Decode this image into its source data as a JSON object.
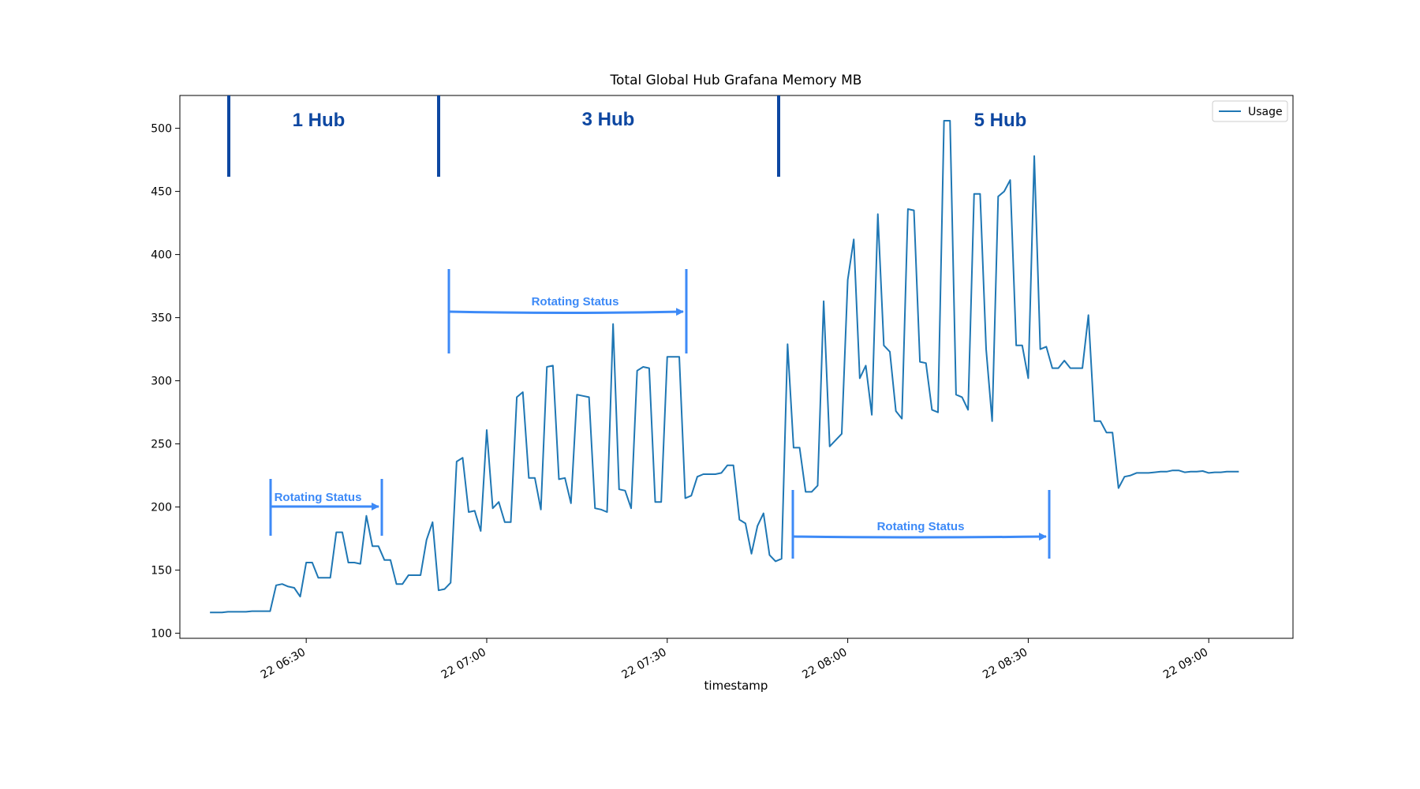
{
  "chart_data": {
    "type": "line",
    "title": "Total Global Hub Grafana Memory MB",
    "x_label": "timestamp",
    "x": [
      "22 06:14",
      "22 06:15",
      "22 06:16",
      "22 06:17",
      "22 06:18",
      "22 06:19",
      "22 06:20",
      "22 06:21",
      "22 06:22",
      "22 06:23",
      "22 06:24",
      "22 06:25",
      "22 06:26",
      "22 06:27",
      "22 06:28",
      "22 06:29",
      "22 06:30",
      "22 06:31",
      "22 06:32",
      "22 06:33",
      "22 06:34",
      "22 06:35",
      "22 06:36",
      "22 06:37",
      "22 06:38",
      "22 06:39",
      "22 06:40",
      "22 06:41",
      "22 06:42",
      "22 06:43",
      "22 06:44",
      "22 06:45",
      "22 06:46",
      "22 06:47",
      "22 06:48",
      "22 06:49",
      "22 06:50",
      "22 06:51",
      "22 06:52",
      "22 06:53",
      "22 06:54",
      "22 06:55",
      "22 06:56",
      "22 06:57",
      "22 06:58",
      "22 06:59",
      "22 07:00",
      "22 07:01",
      "22 07:02",
      "22 07:03",
      "22 07:04",
      "22 07:05",
      "22 07:06",
      "22 07:07",
      "22 07:08",
      "22 07:09",
      "22 07:10",
      "22 07:11",
      "22 07:12",
      "22 07:13",
      "22 07:14",
      "22 07:15",
      "22 07:16",
      "22 07:17",
      "22 07:18",
      "22 07:19",
      "22 07:20",
      "22 07:21",
      "22 07:22",
      "22 07:23",
      "22 07:24",
      "22 07:25",
      "22 07:26",
      "22 07:27",
      "22 07:28",
      "22 07:29",
      "22 07:30",
      "22 07:31",
      "22 07:32",
      "22 07:33",
      "22 07:34",
      "22 07:35",
      "22 07:36",
      "22 07:37",
      "22 07:38",
      "22 07:39",
      "22 07:40",
      "22 07:41",
      "22 07:42",
      "22 07:43",
      "22 07:44",
      "22 07:45",
      "22 07:46",
      "22 07:47",
      "22 07:48",
      "22 07:49",
      "22 07:50",
      "22 07:51",
      "22 07:52",
      "22 07:53",
      "22 07:54",
      "22 07:55",
      "22 07:56",
      "22 07:57",
      "22 07:58",
      "22 07:59",
      "22 08:00",
      "22 08:01",
      "22 08:02",
      "22 08:03",
      "22 08:04",
      "22 08:05",
      "22 08:06",
      "22 08:07",
      "22 08:08",
      "22 08:09",
      "22 08:10",
      "22 08:11",
      "22 08:12",
      "22 08:13",
      "22 08:14",
      "22 08:15",
      "22 08:16",
      "22 08:17",
      "22 08:18",
      "22 08:19",
      "22 08:20",
      "22 08:21",
      "22 08:22",
      "22 08:23",
      "22 08:24",
      "22 08:25",
      "22 08:26",
      "22 08:27",
      "22 08:28",
      "22 08:29",
      "22 08:30",
      "22 08:31",
      "22 08:32",
      "22 08:33",
      "22 08:34",
      "22 08:35",
      "22 08:36",
      "22 08:37",
      "22 08:38",
      "22 08:39",
      "22 08:40",
      "22 08:41",
      "22 08:42",
      "22 08:43",
      "22 08:44",
      "22 08:45",
      "22 08:46",
      "22 08:47",
      "22 08:48",
      "22 08:49",
      "22 08:50",
      "22 08:51",
      "22 08:52",
      "22 08:53",
      "22 08:54",
      "22 08:55",
      "22 08:56",
      "22 08:57",
      "22 08:58",
      "22 08:59",
      "22 09:00",
      "22 09:01",
      "22 09:02",
      "22 09:03",
      "22 09:04",
      "22 09:05"
    ],
    "series": [
      {
        "name": "Usage",
        "color": "#1f77b4",
        "values": [
          116.5,
          116.5,
          116.5,
          117,
          117,
          117,
          117,
          117.5,
          117.5,
          117.5,
          117.5,
          138,
          139,
          137,
          136,
          129,
          156,
          156,
          144,
          144,
          144,
          180,
          180,
          156,
          156,
          155,
          193,
          169,
          169,
          158,
          158,
          139,
          139,
          146,
          146,
          146,
          174,
          188,
          134,
          135,
          140,
          236,
          239,
          196,
          197,
          181,
          261,
          199,
          204,
          188,
          188,
          287,
          291,
          223,
          223,
          198,
          311,
          312,
          222,
          223,
          203,
          289,
          288,
          287,
          199,
          198,
          196,
          345,
          214,
          213,
          199,
          308,
          311,
          310,
          204,
          204,
          319,
          319,
          319,
          207,
          209,
          224,
          226,
          226,
          226,
          227,
          233,
          233,
          190,
          187,
          163,
          185,
          195,
          162,
          157,
          159,
          329,
          247,
          247,
          212,
          212,
          217,
          363,
          248,
          253,
          258,
          380,
          412,
          302,
          312,
          273,
          432,
          328,
          323,
          276,
          270,
          436,
          435,
          315,
          314,
          277,
          275,
          506,
          506,
          289,
          287,
          277,
          448,
          448,
          325,
          268,
          446,
          450,
          459,
          328,
          328,
          302,
          478,
          325,
          327,
          310,
          310,
          316,
          310,
          310,
          310,
          352,
          268,
          268,
          259,
          259,
          215,
          224,
          225,
          227,
          227,
          227,
          227.5,
          228,
          228,
          229,
          229,
          227.5,
          228,
          228,
          228.5,
          227,
          227.5,
          227.5,
          228,
          228,
          228
        ]
      }
    ],
    "xlim": [
      "22 06:09",
      "22 09:14"
    ],
    "xticks": [
      "22 06:30",
      "22 07:00",
      "22 07:30",
      "22 08:00",
      "22 08:30",
      "22 09:00"
    ],
    "ylim": [
      96,
      526
    ],
    "yticks": [
      100,
      150,
      200,
      250,
      300,
      350,
      400,
      450,
      500
    ],
    "legend": "upper right",
    "annotations": [
      "1 Hub",
      "3 Hub",
      "5 Hub",
      "Rotating Status",
      "Rotating Status",
      "Rotating Status"
    ]
  }
}
